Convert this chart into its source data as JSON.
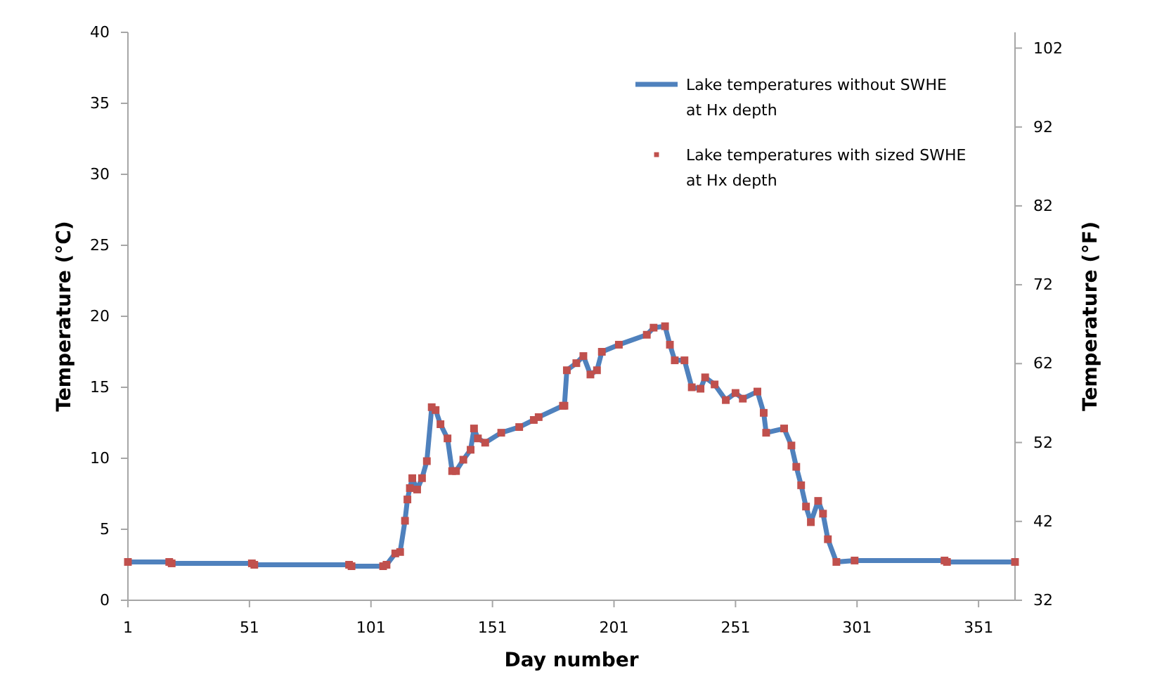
{
  "chart_data": {
    "type": "line",
    "xlabel": "Day number",
    "ylabel": "Temperature (°C)",
    "y2label": "Temperature (°F)",
    "xlim": [
      1,
      366
    ],
    "xticks": [
      1,
      51,
      101,
      151,
      201,
      251,
      301,
      351
    ],
    "ylim": [
      0,
      40
    ],
    "yticks": [
      0,
      5,
      10,
      15,
      20,
      25,
      30,
      35,
      40
    ],
    "y2lim": [
      32,
      104
    ],
    "y2ticks": [
      32,
      42,
      52,
      62,
      72,
      82,
      92,
      102
    ],
    "grid": false,
    "legend": "top right",
    "series": [
      {
        "name": "Lake temperatures without SWHE at Hx depth",
        "color": "#4f81bd",
        "marker": "none",
        "x": [
          1,
          18,
          19,
          52,
          53,
          92,
          93,
          106,
          107.4,
          111,
          113,
          115,
          116,
          117,
          118,
          120,
          122,
          124,
          126,
          127.6,
          129.6,
          132.5,
          134.4,
          136,
          139,
          142,
          143.4,
          145,
          148,
          154.6,
          162,
          168,
          170,
          180,
          180.6,
          181.6,
          185.5,
          188.4,
          191.3,
          194,
          196,
          203,
          214.5,
          217.3,
          222,
          224,
          226,
          230,
          233,
          236.6,
          238.5,
          242.4,
          247,
          251,
          254,
          260,
          262.6,
          263.6,
          271,
          274,
          276,
          278,
          280,
          282,
          285,
          287,
          289,
          292.5,
          300,
          337,
          338,
          366
        ],
        "values": [
          2.7,
          2.7,
          2.6,
          2.6,
          2.5,
          2.5,
          2.4,
          2.4,
          2.5,
          3.3,
          3.4,
          5.6,
          7.1,
          7.9,
          8.6,
          7.8,
          8.6,
          9.8,
          13.6,
          13.4,
          12.4,
          11.4,
          9.1,
          9.1,
          9.9,
          10.6,
          12.1,
          11.4,
          11.1,
          11.8,
          12.2,
          12.7,
          12.9,
          13.7,
          13.7,
          16.2,
          16.7,
          17.2,
          15.9,
          16.2,
          17.5,
          18,
          18.7,
          19.2,
          19.3,
          18,
          16.9,
          16.9,
          15,
          14.9,
          15.7,
          15.2,
          14.1,
          14.6,
          14.2,
          14.7,
          13.2,
          11.8,
          12.1,
          10.9,
          9.4,
          8.1,
          6.6,
          5.5,
          7,
          6.1,
          4.3,
          2.7,
          2.8,
          2.8,
          2.7,
          2.7
        ]
      },
      {
        "name": "Lake temperatures with sized SWHE at Hx depth",
        "type": "scatter",
        "color": "#c0504d",
        "marker": "square",
        "x": [
          1,
          18,
          19,
          52,
          53,
          92,
          93,
          106,
          107.4,
          111,
          113,
          115,
          116,
          117,
          118,
          120,
          122,
          124,
          126,
          127.6,
          129.6,
          132.5,
          134.4,
          136,
          139,
          142,
          143.4,
          145,
          148,
          154.6,
          162,
          168,
          170,
          180,
          180.6,
          181.6,
          185.5,
          188.4,
          191.3,
          194,
          196,
          203,
          214.5,
          217.3,
          222,
          224,
          226,
          230,
          233,
          236.6,
          238.5,
          242.4,
          247,
          251,
          254,
          260,
          262.6,
          263.6,
          271,
          274,
          276,
          278,
          280,
          282,
          285,
          287,
          289,
          292.5,
          300,
          337,
          338,
          366
        ],
        "values": [
          2.7,
          2.7,
          2.6,
          2.6,
          2.5,
          2.5,
          2.4,
          2.4,
          2.5,
          3.3,
          3.4,
          5.6,
          7.1,
          7.9,
          8.6,
          7.8,
          8.6,
          9.8,
          13.6,
          13.4,
          12.4,
          11.4,
          9.1,
          9.1,
          9.9,
          10.6,
          12.1,
          11.4,
          11.1,
          11.8,
          12.2,
          12.7,
          12.9,
          13.7,
          13.7,
          16.2,
          16.7,
          17.2,
          15.9,
          16.2,
          17.5,
          18,
          18.7,
          19.2,
          19.3,
          18,
          16.9,
          16.9,
          15,
          14.9,
          15.7,
          15.2,
          14.1,
          14.6,
          14.2,
          14.7,
          13.2,
          11.8,
          12.1,
          10.9,
          9.4,
          8.1,
          6.6,
          5.5,
          7,
          6.1,
          4.3,
          2.7,
          2.8,
          2.8,
          2.7,
          2.7
        ]
      }
    ]
  }
}
